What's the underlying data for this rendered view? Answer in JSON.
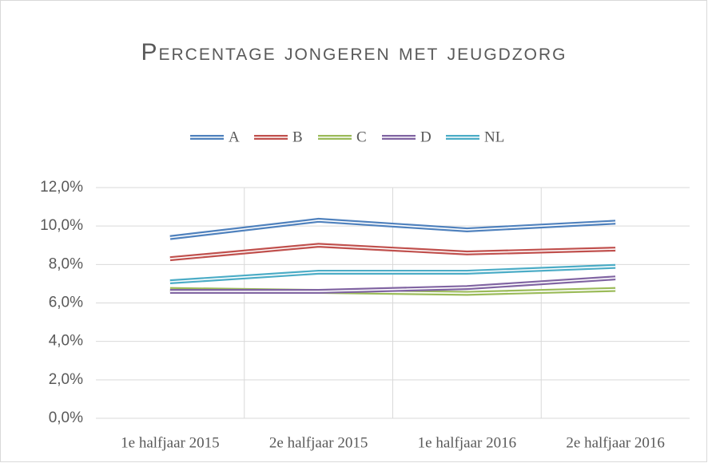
{
  "chart_data": {
    "type": "line",
    "title": "Percentage jongeren met jeugdzorg",
    "categories": [
      "1e halfjaar 2015",
      "2e halfjaar 2015",
      "1e halfjaar 2016",
      "2e halfjaar 2016"
    ],
    "series": [
      {
        "name": "A",
        "color": "#4f81bd",
        "values": [
          9.4,
          10.3,
          9.8,
          10.2
        ]
      },
      {
        "name": "B",
        "color": "#c0504d",
        "values": [
          8.3,
          9.0,
          8.6,
          8.8
        ]
      },
      {
        "name": "C",
        "color": "#9bbb59",
        "values": [
          6.7,
          6.6,
          6.5,
          6.7
        ]
      },
      {
        "name": "D",
        "color": "#8064a2",
        "values": [
          6.6,
          6.6,
          6.8,
          7.3
        ]
      },
      {
        "name": "NL",
        "color": "#4bacc6",
        "values": [
          7.1,
          7.6,
          7.6,
          7.9
        ]
      }
    ],
    "ylim": [
      0,
      12
    ],
    "yticks": [
      {
        "value": 0,
        "label": "0,0%"
      },
      {
        "value": 2,
        "label": "2,0%"
      },
      {
        "value": 4,
        "label": "4,0%"
      },
      {
        "value": 6,
        "label": "6,0%"
      },
      {
        "value": 8,
        "label": "8,0%"
      },
      {
        "value": 10,
        "label": "10,0%"
      },
      {
        "value": 12,
        "label": "12,0%"
      }
    ],
    "grid": true,
    "legend": "top"
  }
}
